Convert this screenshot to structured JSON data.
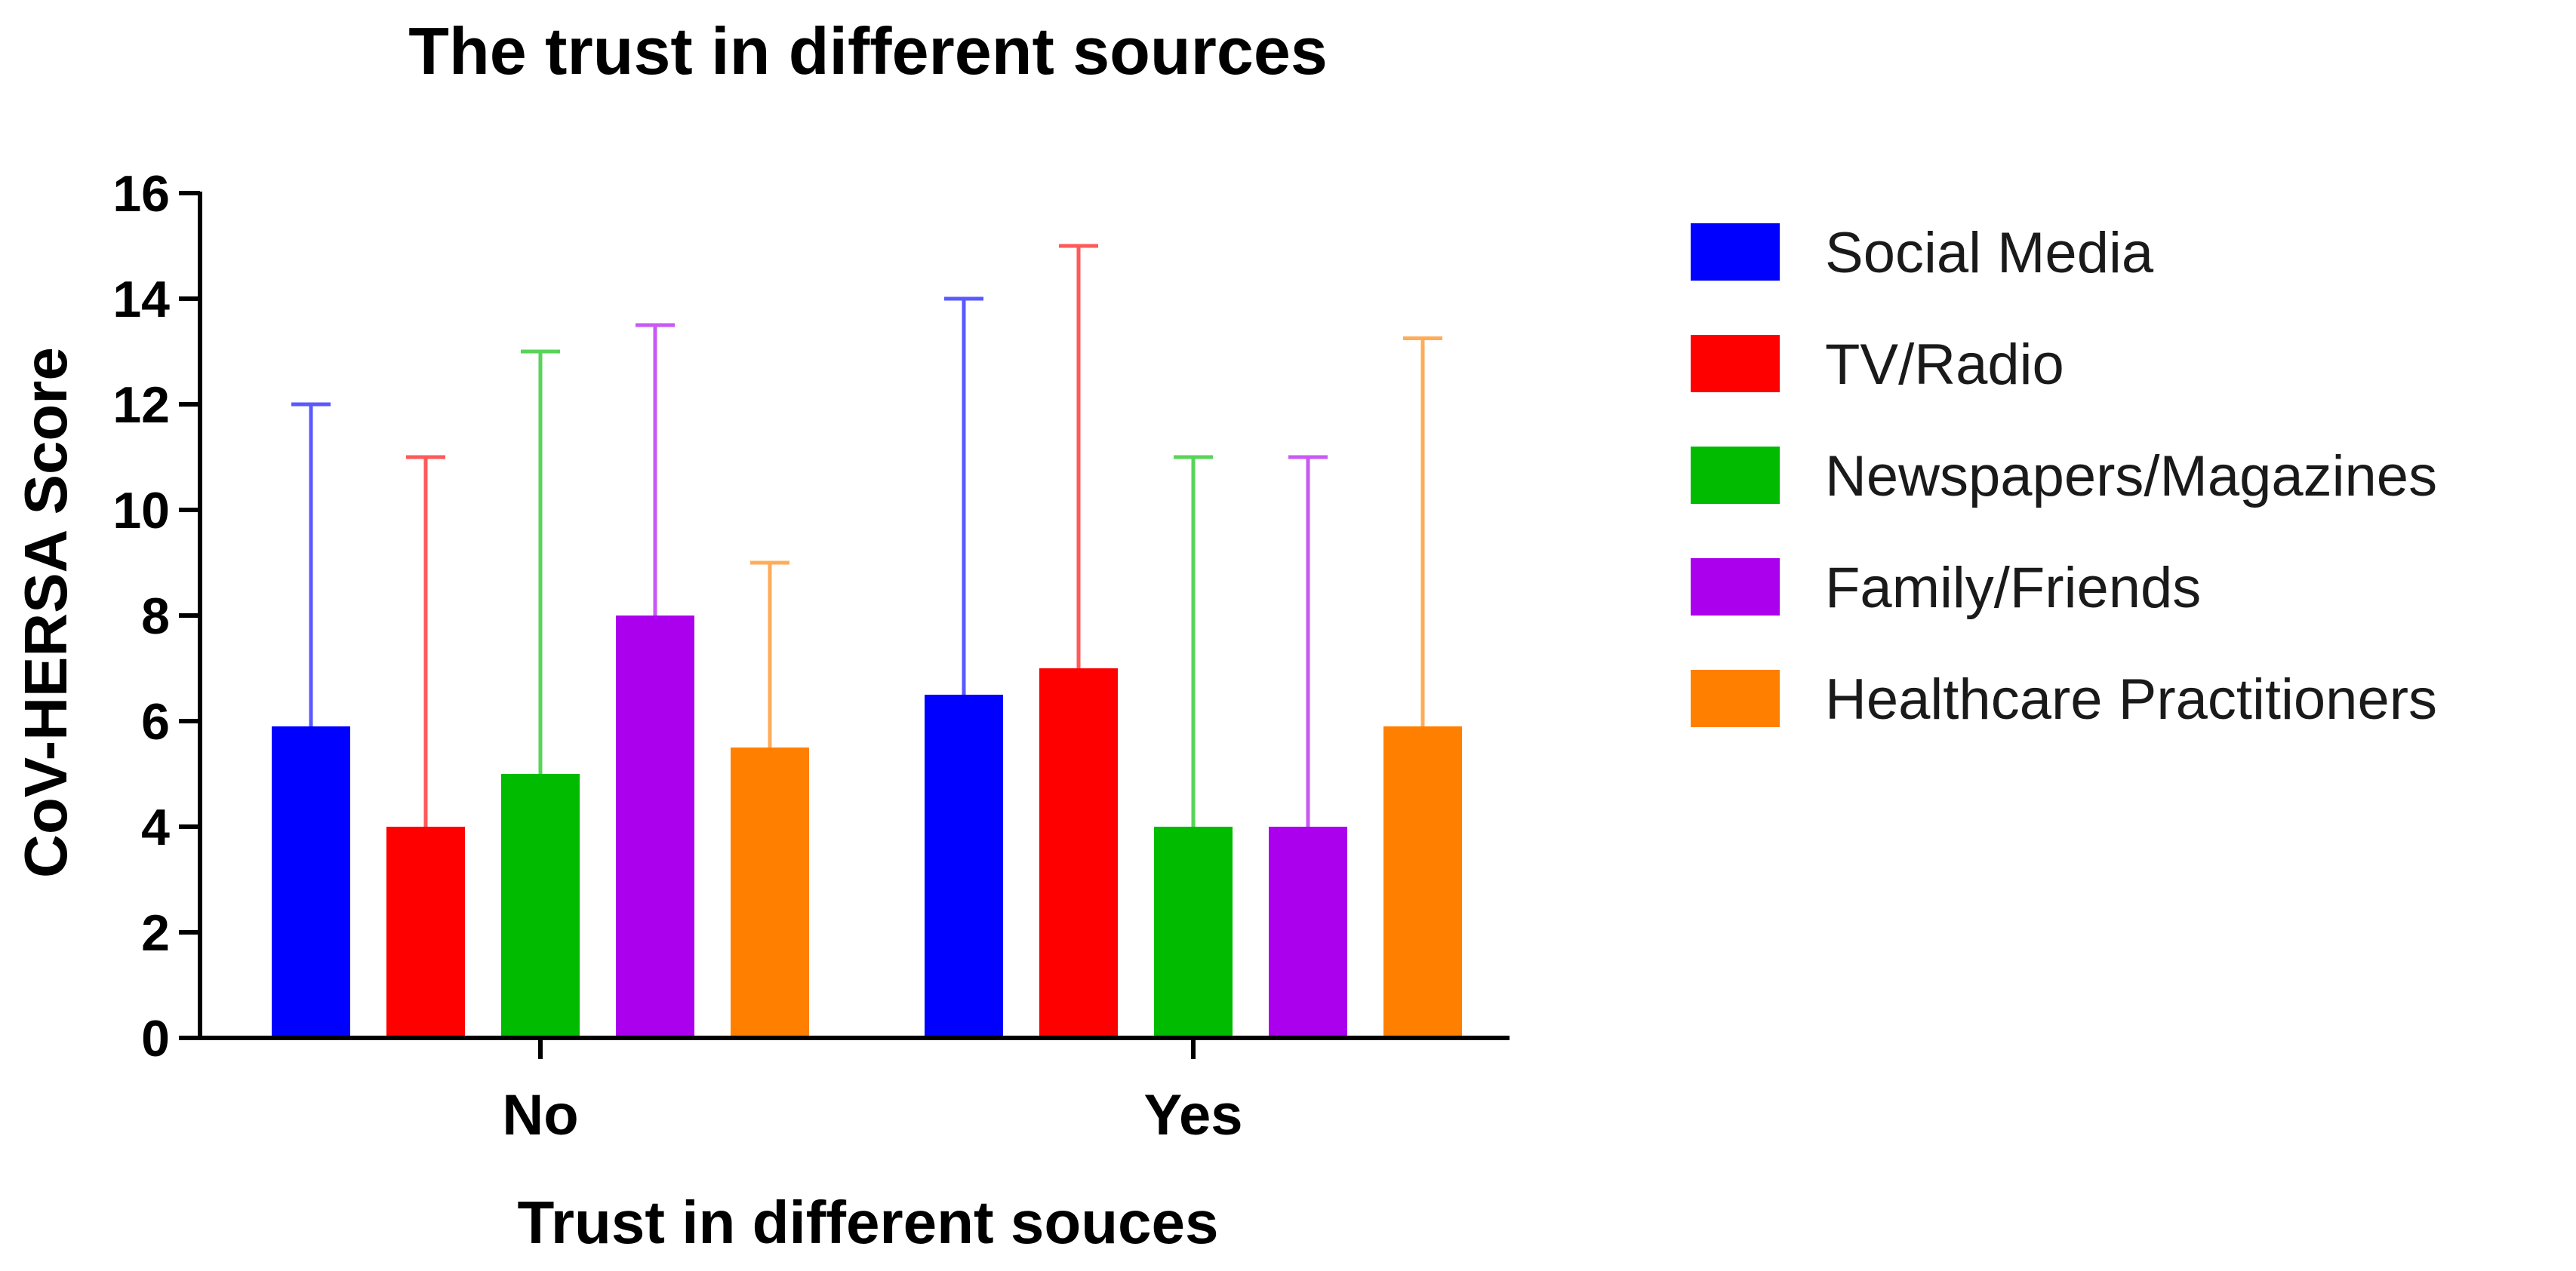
{
  "chart_data": {
    "type": "bar",
    "title": "The trust in different sources",
    "xlabel": "Trust in different souces",
    "ylabel": "CoV-HERSA Score",
    "categories": [
      "No",
      "Yes"
    ],
    "ylim": [
      0,
      16
    ],
    "yticks": [
      0,
      2,
      4,
      6,
      8,
      10,
      12,
      14,
      16
    ],
    "grid": false,
    "legend_position": "right",
    "error_bars": "upper",
    "series": [
      {
        "name": "Social Media",
        "color": "#0000ff",
        "values": [
          5.9,
          6.5
        ],
        "upper": [
          12,
          14
        ]
      },
      {
        "name": "TV/Radio",
        "color": "#ff0000",
        "values": [
          4,
          7
        ],
        "upper": [
          11,
          15
        ]
      },
      {
        "name": "Newspapers/Magazines",
        "color": "#00bb00",
        "values": [
          5,
          4
        ],
        "upper": [
          13,
          11
        ]
      },
      {
        "name": "Family/Friends",
        "color": "#aa00ee",
        "values": [
          8,
          4
        ],
        "upper": [
          13.5,
          11
        ]
      },
      {
        "name": "Healthcare Practitioners",
        "color": "#ff8000",
        "values": [
          5.5,
          5.9
        ],
        "upper": [
          9,
          13.25
        ]
      }
    ]
  }
}
